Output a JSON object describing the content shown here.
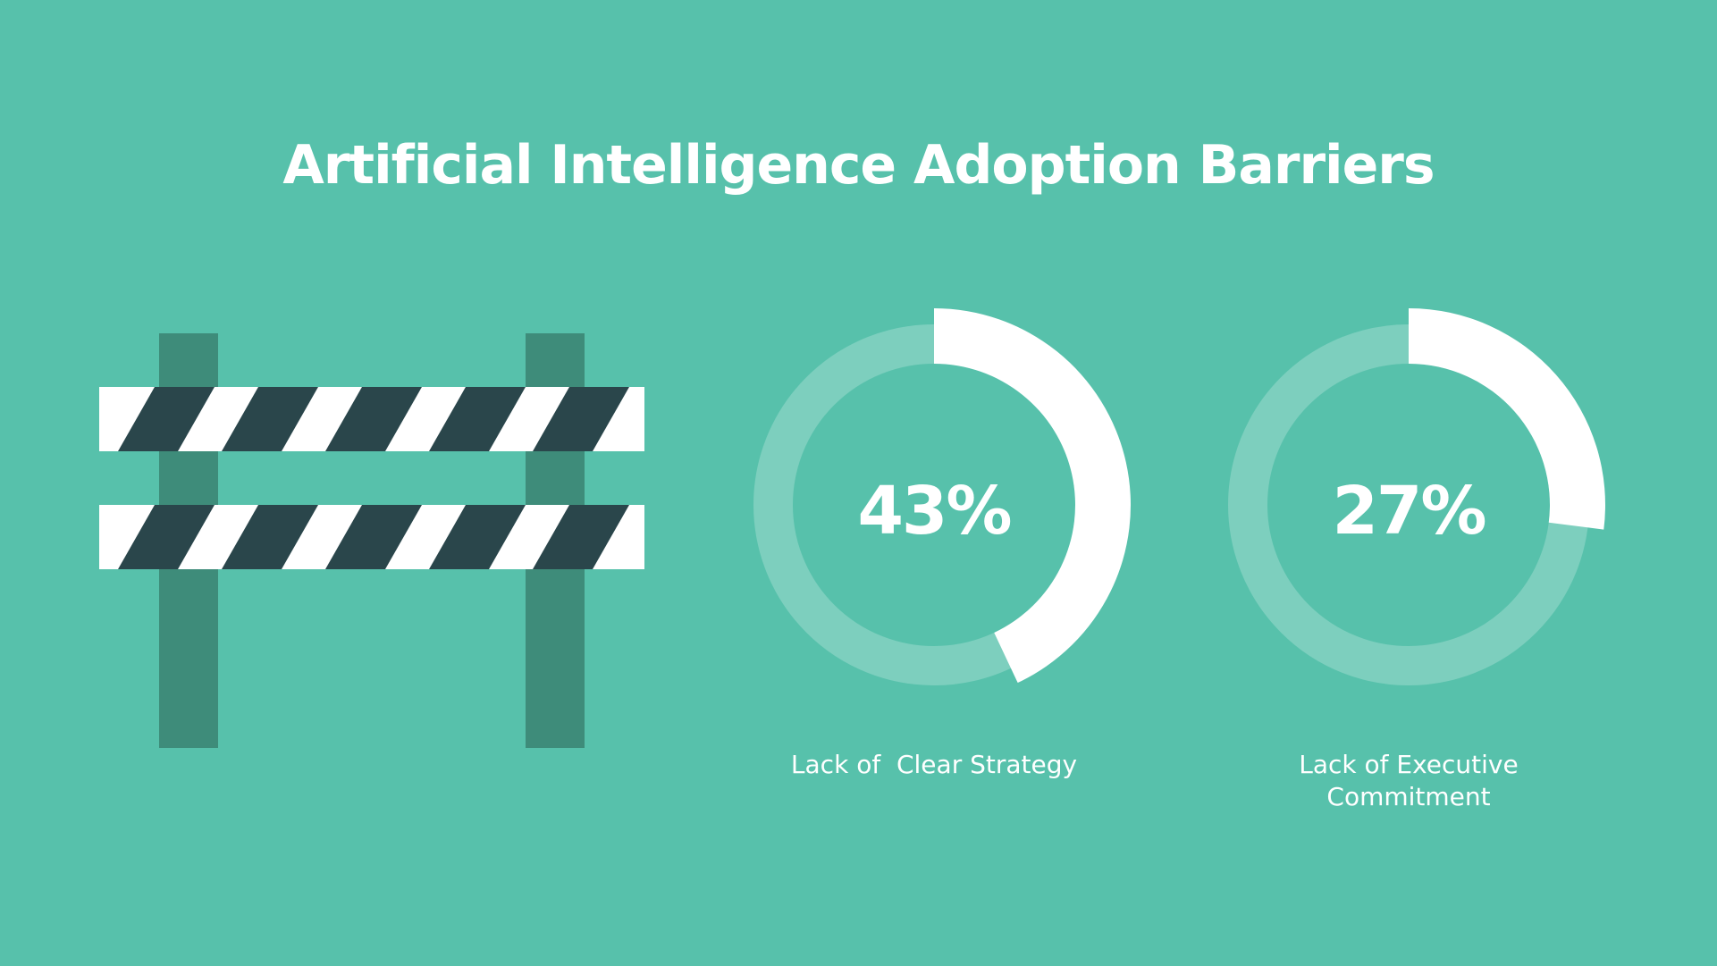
{
  "title": "Artificial Intelligence Adoption Barriers",
  "colors": {
    "background": "#57c1ab",
    "ring_track": "#7dcfbe",
    "ring_fill": "#ffffff",
    "post": "#3e8c7a",
    "stripe_dark": "#2a464b",
    "stripe_light": "#ffffff"
  },
  "icons": [
    "road-barrier-icon"
  ],
  "chart_data": [
    {
      "type": "pie",
      "title": "",
      "series": [
        {
          "name": "Lack of  Clear Strategy",
          "value": 43,
          "display": "43%"
        }
      ]
    },
    {
      "type": "pie",
      "title": "",
      "series": [
        {
          "name": "Lack of Executive\nCommitment",
          "value": 27,
          "display": "27%"
        }
      ]
    }
  ]
}
